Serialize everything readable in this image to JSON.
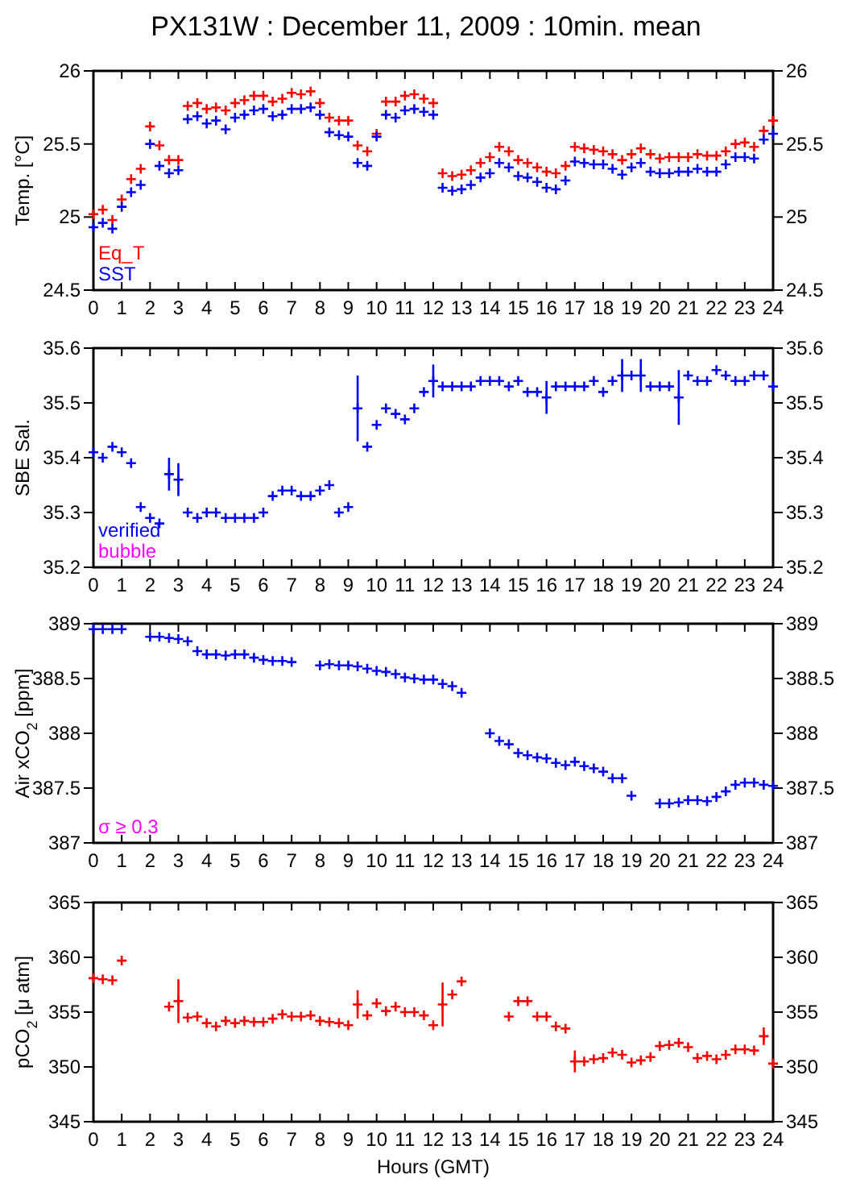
{
  "chart_data": [
    {
      "type": "scatter",
      "title": "PX131W : December 11, 2009 : 10min. mean",
      "ylabel": "Temp. [°C]",
      "marker": "cross",
      "legend": "bottom left",
      "grid": false,
      "x": [
        0,
        0.33,
        0.67,
        1,
        1.33,
        1.67,
        2,
        2.33,
        2.67,
        3,
        3.33,
        3.67,
        4,
        4.33,
        4.67,
        5,
        5.33,
        5.67,
        6,
        6.33,
        6.67,
        7,
        7.33,
        7.67,
        8,
        8.33,
        8.67,
        9,
        9.33,
        9.67,
        10,
        10.33,
        10.67,
        11,
        11.33,
        11.67,
        12,
        12.33,
        12.67,
        13,
        13.33,
        13.67,
        14,
        14.33,
        14.67,
        15,
        15.33,
        15.67,
        16,
        16.33,
        16.67,
        17,
        17.33,
        17.67,
        18,
        18.33,
        18.67,
        19,
        19.33,
        19.67,
        20,
        20.33,
        20.67,
        21,
        21.33,
        21.67,
        22,
        22.33,
        22.67,
        23,
        23.33,
        23.67,
        24
      ],
      "xlim": [
        0,
        24
      ],
      "xticks": [
        0,
        1,
        2,
        3,
        4,
        5,
        6,
        7,
        8,
        9,
        10,
        11,
        12,
        13,
        14,
        15,
        16,
        17,
        18,
        19,
        20,
        21,
        22,
        23,
        24
      ],
      "ylim": [
        24.5,
        26
      ],
      "yticks": [
        24.5,
        25,
        25.5,
        26
      ],
      "y2lim": [
        24.5,
        26
      ],
      "y2ticks": [
        24.5,
        25,
        25.5,
        26
      ],
      "series": [
        {
          "name": "Eq_T",
          "color": "#ff0000",
          "values": [
            25.02,
            25.05,
            24.98,
            25.12,
            25.26,
            25.33,
            25.62,
            25.49,
            25.39,
            25.39,
            25.76,
            25.78,
            25.74,
            25.75,
            25.73,
            25.78,
            25.8,
            25.83,
            25.83,
            25.79,
            25.81,
            25.85,
            25.84,
            25.86,
            25.78,
            25.68,
            25.66,
            25.66,
            25.49,
            25.45,
            25.57,
            25.79,
            25.79,
            25.83,
            25.84,
            25.81,
            25.78,
            25.3,
            25.28,
            25.29,
            25.32,
            25.37,
            25.41,
            25.48,
            25.45,
            25.39,
            25.37,
            25.34,
            25.31,
            25.3,
            25.35,
            25.48,
            25.47,
            25.46,
            25.45,
            25.43,
            25.39,
            25.43,
            25.47,
            25.43,
            25.4,
            25.41,
            25.41,
            25.41,
            25.43,
            25.42,
            25.42,
            25.45,
            25.5,
            25.51,
            25.48,
            25.59,
            25.66
          ]
        },
        {
          "name": "SST",
          "color": "#0000ff",
          "values": [
            24.93,
            24.96,
            24.92,
            25.07,
            25.17,
            25.22,
            25.5,
            25.35,
            25.3,
            25.32,
            25.67,
            25.69,
            25.64,
            25.66,
            25.6,
            25.68,
            25.7,
            25.73,
            25.74,
            25.69,
            25.7,
            25.74,
            25.74,
            25.75,
            25.7,
            25.58,
            25.56,
            25.55,
            25.37,
            25.35,
            25.55,
            25.7,
            25.68,
            25.73,
            25.74,
            25.72,
            25.7,
            25.2,
            25.18,
            25.19,
            25.22,
            25.27,
            25.3,
            25.37,
            25.34,
            25.28,
            25.27,
            25.24,
            25.2,
            25.19,
            25.25,
            25.38,
            25.37,
            25.36,
            25.36,
            25.33,
            25.29,
            25.34,
            25.37,
            25.31,
            25.3,
            25.3,
            25.31,
            25.31,
            25.33,
            25.31,
            25.31,
            25.36,
            25.41,
            25.41,
            25.4,
            25.53,
            25.57
          ]
        }
      ]
    },
    {
      "type": "scatter",
      "ylabel": "SBE Sal.",
      "marker": "cross",
      "legend": "bottom left",
      "grid": false,
      "annotations": [
        "bubble"
      ],
      "x": [
        0,
        0.33,
        0.67,
        1,
        1.33,
        1.67,
        2,
        2.33,
        2.67,
        3,
        3.33,
        3.67,
        4,
        4.33,
        4.67,
        5,
        5.33,
        5.67,
        6,
        6.33,
        6.67,
        7,
        7.33,
        7.67,
        8,
        8.33,
        8.67,
        9,
        9.33,
        9.67,
        10,
        10.33,
        10.67,
        11,
        11.33,
        11.67,
        12,
        12.33,
        12.67,
        13,
        13.33,
        13.67,
        14,
        14.33,
        14.67,
        15,
        15.33,
        15.67,
        16,
        16.33,
        16.67,
        17,
        17.33,
        17.67,
        18,
        18.33,
        18.67,
        19,
        19.33,
        19.67,
        20,
        20.33,
        20.67,
        21,
        21.33,
        21.67,
        22,
        22.33,
        22.67,
        23,
        23.33,
        23.67,
        24
      ],
      "xlim": [
        0,
        24
      ],
      "xticks": [
        0,
        1,
        2,
        3,
        4,
        5,
        6,
        7,
        8,
        9,
        10,
        11,
        12,
        13,
        14,
        15,
        16,
        17,
        18,
        19,
        20,
        21,
        22,
        23,
        24
      ],
      "ylim": [
        35.2,
        35.6
      ],
      "yticks": [
        35.2,
        35.3,
        35.4,
        35.5,
        35.6
      ],
      "y2lim": [
        35.2,
        35.6
      ],
      "y2ticks": [
        35.2,
        35.3,
        35.4,
        35.5,
        35.6
      ],
      "series": [
        {
          "name": "verified",
          "color": "#0000ff",
          "values": [
            35.41,
            35.4,
            35.42,
            35.41,
            35.39,
            35.31,
            35.29,
            35.28,
            35.37,
            35.36,
            35.3,
            35.29,
            35.3,
            35.3,
            35.29,
            35.29,
            35.29,
            35.29,
            35.3,
            35.33,
            35.34,
            35.34,
            35.33,
            35.33,
            35.34,
            35.35,
            35.3,
            35.31,
            35.49,
            35.42,
            35.46,
            35.49,
            35.48,
            35.47,
            35.49,
            35.52,
            35.54,
            35.53,
            35.53,
            35.53,
            35.53,
            35.54,
            35.54,
            35.54,
            35.53,
            35.54,
            35.52,
            35.52,
            35.51,
            35.53,
            35.53,
            35.53,
            35.53,
            35.54,
            35.52,
            35.54,
            35.55,
            35.55,
            35.55,
            35.53,
            35.53,
            35.53,
            35.51,
            35.55,
            35.54,
            35.54,
            35.56,
            35.55,
            35.54,
            35.54,
            35.55,
            35.55,
            35.53
          ],
          "errors": [
            null,
            null,
            null,
            null,
            null,
            null,
            null,
            null,
            0.03,
            0.03,
            null,
            null,
            null,
            null,
            null,
            null,
            null,
            null,
            null,
            null,
            null,
            null,
            null,
            null,
            null,
            null,
            null,
            null,
            0.06,
            null,
            null,
            null,
            null,
            null,
            null,
            null,
            0.03,
            null,
            null,
            null,
            null,
            null,
            null,
            null,
            null,
            null,
            null,
            null,
            0.03,
            null,
            null,
            null,
            null,
            null,
            null,
            null,
            0.03,
            null,
            0.03,
            null,
            null,
            null,
            0.05,
            null,
            null,
            null,
            null,
            null,
            null,
            null,
            null,
            null,
            null
          ]
        }
      ]
    },
    {
      "type": "scatter",
      "ylabel": "Air xCO$_{2}$ [ppm]",
      "marker": "cross",
      "grid": false,
      "annotations": [
        "σ ≥ 0.3"
      ],
      "x": [
        0,
        0.33,
        0.67,
        1,
        1.33,
        1.67,
        2,
        2.33,
        2.67,
        3,
        3.33,
        3.67,
        4,
        4.33,
        4.67,
        5,
        5.33,
        5.67,
        6,
        6.33,
        6.67,
        7,
        7.33,
        7.67,
        8,
        8.33,
        8.67,
        9,
        9.33,
        9.67,
        10,
        10.33,
        10.67,
        11,
        11.33,
        11.67,
        12,
        12.33,
        12.67,
        13,
        13.33,
        13.67,
        14,
        14.33,
        14.67,
        15,
        15.33,
        15.67,
        16,
        16.33,
        16.67,
        17,
        17.33,
        17.67,
        18,
        18.33,
        18.67,
        19,
        19.33,
        19.67,
        20,
        20.33,
        20.67,
        21,
        21.33,
        21.67,
        22,
        22.33,
        22.67,
        23,
        23.33,
        23.67,
        24
      ],
      "xlim": [
        0,
        24
      ],
      "xticks": [
        0,
        1,
        2,
        3,
        4,
        5,
        6,
        7,
        8,
        9,
        10,
        11,
        12,
        13,
        14,
        15,
        16,
        17,
        18,
        19,
        20,
        21,
        22,
        23,
        24
      ],
      "ylim": [
        387,
        389
      ],
      "yticks": [
        387,
        387.5,
        388,
        388.5,
        389
      ],
      "y2lim": [
        387,
        389
      ],
      "y2ticks": [
        387,
        387.5,
        388,
        388.5,
        389
      ],
      "series": [
        {
          "color": "#0000ff",
          "values": [
            388.95,
            388.95,
            388.95,
            388.95,
            null,
            null,
            388.88,
            388.88,
            388.87,
            388.86,
            388.84,
            388.75,
            388.72,
            388.72,
            388.71,
            388.72,
            388.72,
            388.69,
            388.67,
            388.66,
            388.66,
            388.65,
            null,
            null,
            388.62,
            388.63,
            388.62,
            388.62,
            388.61,
            388.59,
            388.57,
            388.56,
            388.54,
            388.51,
            388.5,
            388.49,
            388.49,
            388.45,
            388.43,
            388.37,
            null,
            null,
            388,
            387.93,
            387.9,
            387.82,
            387.8,
            387.78,
            387.77,
            387.73,
            387.71,
            387.74,
            387.7,
            387.68,
            387.65,
            387.59,
            387.59,
            387.43,
            null,
            null,
            387.36,
            387.36,
            387.37,
            387.39,
            387.39,
            387.38,
            387.42,
            387.47,
            387.53,
            387.55,
            387.55,
            387.53,
            387.52
          ]
        }
      ]
    },
    {
      "type": "scatter",
      "ylabel": "pCO$_{2}$ [μ atm]",
      "xlabel": "Hours (GMT)",
      "marker": "cross",
      "grid": false,
      "x": [
        0,
        0.33,
        0.67,
        1,
        1.33,
        1.67,
        2,
        2.33,
        2.67,
        3,
        3.33,
        3.67,
        4,
        4.33,
        4.67,
        5,
        5.33,
        5.67,
        6,
        6.33,
        6.67,
        7,
        7.33,
        7.67,
        8,
        8.33,
        8.67,
        9,
        9.33,
        9.67,
        10,
        10.33,
        10.67,
        11,
        11.33,
        11.67,
        12,
        12.33,
        12.67,
        13,
        13.33,
        13.67,
        14,
        14.33,
        14.67,
        15,
        15.33,
        15.67,
        16,
        16.33,
        16.67,
        17,
        17.33,
        17.67,
        18,
        18.33,
        18.67,
        19,
        19.33,
        19.67,
        20,
        20.33,
        20.67,
        21,
        21.33,
        21.67,
        22,
        22.33,
        22.67,
        23,
        23.33,
        23.67,
        24
      ],
      "xlim": [
        0,
        24
      ],
      "xticks": [
        0,
        1,
        2,
        3,
        4,
        5,
        6,
        7,
        8,
        9,
        10,
        11,
        12,
        13,
        14,
        15,
        16,
        17,
        18,
        19,
        20,
        21,
        22,
        23,
        24
      ],
      "ylim": [
        345,
        365
      ],
      "yticks": [
        345,
        350,
        355,
        360,
        365
      ],
      "y2lim": [
        345,
        365
      ],
      "y2ticks": [
        345,
        350,
        355,
        360,
        365
      ],
      "series": [
        {
          "color": "#ff0000",
          "values": [
            358.1,
            358,
            357.9,
            359.7,
            null,
            null,
            null,
            null,
            355.5,
            356,
            354.5,
            354.6,
            354,
            353.7,
            354.2,
            354,
            354.2,
            354.1,
            354.1,
            354.4,
            354.8,
            354.6,
            354.6,
            354.7,
            354.2,
            354.1,
            354,
            353.8,
            355.7,
            354.7,
            355.8,
            355.1,
            355.5,
            355,
            355,
            354.7,
            353.8,
            355.7,
            356.6,
            357.8,
            null,
            null,
            null,
            null,
            354.6,
            356,
            356,
            354.6,
            354.6,
            353.7,
            353.5,
            350.5,
            350.5,
            350.7,
            350.8,
            351.3,
            351.1,
            350.4,
            350.6,
            350.9,
            351.9,
            352,
            352.2,
            351.8,
            350.8,
            351,
            350.7,
            351.1,
            351.6,
            351.6,
            351.5,
            352.8,
            350.3
          ],
          "errors": [
            null,
            null,
            null,
            null,
            null,
            null,
            null,
            null,
            null,
            2,
            null,
            null,
            null,
            null,
            null,
            null,
            null,
            null,
            null,
            null,
            null,
            null,
            null,
            null,
            null,
            null,
            null,
            null,
            1.3,
            null,
            null,
            null,
            null,
            null,
            null,
            null,
            null,
            2,
            null,
            null,
            null,
            null,
            null,
            null,
            null,
            null,
            null,
            null,
            null,
            null,
            null,
            1,
            null,
            null,
            null,
            null,
            null,
            null,
            null,
            null,
            null,
            null,
            null,
            null,
            null,
            null,
            null,
            null,
            null,
            null,
            null,
            0.8,
            null
          ]
        }
      ]
    }
  ]
}
